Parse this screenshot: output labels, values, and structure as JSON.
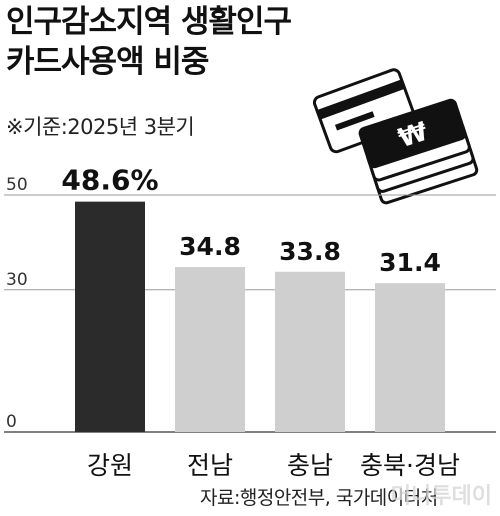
{
  "title_lines": [
    "인구감소지역 생활인구",
    "카드사용액 비중"
  ],
  "subtitle": "※기준:2025년 3분기",
  "source": "자료:행정안전부, 국가데이터처",
  "watermark": "머니투데이",
  "colors": {
    "highlight_bar": "#2b2b2b",
    "other_bar": "#cfcfcf",
    "grid": "#9a9a9a",
    "text": "#111111"
  },
  "icon": "credit-cards-and-won-coins-icon",
  "chart_data": {
    "type": "bar",
    "title": "인구감소지역 생활인구 카드사용액 비중",
    "categories": [
      "강원",
      "전남",
      "충남",
      "충북·경남"
    ],
    "values": [
      48.6,
      34.8,
      33.8,
      31.4
    ],
    "value_labels": [
      "48.6%",
      "34.8",
      "33.8",
      "31.4"
    ],
    "y_ticks": [
      0,
      30,
      50
    ],
    "y_tick_labels": [
      "0",
      "30",
      "50"
    ],
    "ylim": [
      0,
      50
    ],
    "highlight_index": 0,
    "xlabel": "",
    "ylabel": "",
    "grid": true,
    "legend": "none"
  }
}
